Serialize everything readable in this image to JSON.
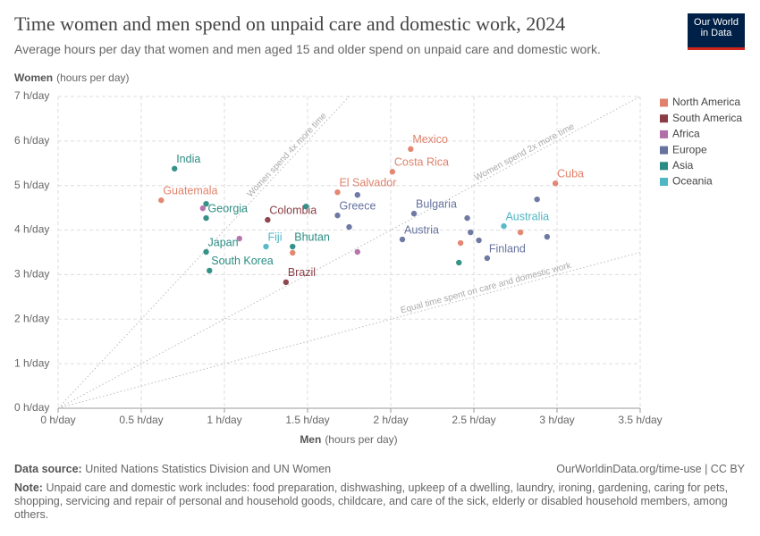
{
  "chart_data": {
    "type": "scatter",
    "title": "Time women and men spend on unpaid care and domestic work, 2024",
    "subtitle": "Average hours per day that women and men aged 15 and older spend on unpaid care and domestic work.",
    "logo": "Our World in Data",
    "y_label": "Women",
    "y_label_unit": "(hours per day)",
    "x_label": "Men",
    "x_label_unit": "(hours per day)",
    "xlim": [
      0,
      3.5
    ],
    "ylim": [
      0,
      7
    ],
    "xticks": [
      {
        "value": 0,
        "label": "0 h/day"
      },
      {
        "value": 0.5,
        "label": "0.5 h/day"
      },
      {
        "value": 1,
        "label": "1 h/day"
      },
      {
        "value": 1.5,
        "label": "1.5 h/day"
      },
      {
        "value": 2,
        "label": "2 h/day"
      },
      {
        "value": 2.5,
        "label": "2.5 h/day"
      },
      {
        "value": 3,
        "label": "3 h/day"
      },
      {
        "value": 3.5,
        "label": "3.5 h/day"
      }
    ],
    "yticks": [
      {
        "value": 0,
        "label": "0 h/day"
      },
      {
        "value": 1,
        "label": "1 h/day"
      },
      {
        "value": 2,
        "label": "2 h/day"
      },
      {
        "value": 3,
        "label": "3 h/day"
      },
      {
        "value": 4,
        "label": "4 h/day"
      },
      {
        "value": 5,
        "label": "5 h/day"
      },
      {
        "value": 6,
        "label": "6 h/day"
      },
      {
        "value": 7,
        "label": "7 h/day"
      }
    ],
    "grid": true,
    "legend": "right",
    "reference_lines": [
      {
        "slope": 4,
        "label": "Women spend 4x more time"
      },
      {
        "slope": 2,
        "label": "Women spend 2x more time"
      },
      {
        "slope": 1,
        "label": "Equal time spent on care and domestic work"
      }
    ],
    "series": [
      {
        "name": "North America",
        "color": "#e0826b",
        "x": [
          2.12,
          2.01,
          1.68,
          2.99,
          0.62,
          1.41,
          2.42,
          2.78
        ],
        "values": [
          5.82,
          5.31,
          4.85,
          5.05,
          4.67,
          3.49,
          3.71,
          3.95
        ],
        "labels": [
          "Mexico",
          "Costa Rica",
          "El Salvador",
          "Cuba",
          "Guatemala",
          null,
          null,
          null
        ]
      },
      {
        "name": "South America",
        "color": "#8a3c44",
        "x": [
          1.26,
          1.37
        ],
        "values": [
          4.23,
          2.83
        ],
        "labels": [
          "Colombia",
          "Brazil"
        ]
      },
      {
        "name": "Africa",
        "color": "#b16fa8",
        "x": [
          0.87,
          1.09,
          1.8
        ],
        "values": [
          4.49,
          3.81,
          3.51
        ],
        "labels": [
          null,
          null,
          null
        ]
      },
      {
        "name": "Europe",
        "color": "#66739e",
        "x": [
          1.68,
          2.14,
          2.07,
          2.58,
          1.8,
          1.75,
          2.46,
          2.48,
          2.53,
          2.88,
          2.94
        ],
        "values": [
          4.33,
          4.37,
          3.79,
          3.37,
          4.79,
          4.07,
          4.27,
          3.95,
          3.77,
          4.69,
          3.85
        ],
        "labels": [
          "Greece",
          "Bulgaria",
          "Austria",
          "Finland",
          null,
          null,
          null,
          null,
          null,
          null,
          null
        ]
      },
      {
        "name": "Asia",
        "color": "#2a8c82",
        "x": [
          0.7,
          0.89,
          0.89,
          0.91,
          1.41,
          0.89,
          1.49,
          2.41
        ],
        "values": [
          5.38,
          4.27,
          3.51,
          3.09,
          3.63,
          4.59,
          4.53,
          3.27
        ],
        "labels": [
          "India",
          "Georgia",
          "Japan",
          "South Korea",
          "Bhutan",
          null,
          null,
          null
        ]
      },
      {
        "name": "Oceania",
        "color": "#4fb6c4",
        "x": [
          2.68,
          1.25
        ],
        "values": [
          4.09,
          3.63
        ],
        "labels": [
          "Australia",
          "Fiji"
        ]
      }
    ],
    "source_label": "Data source:",
    "source": "United Nations Statistics Division and UN Women",
    "url": "OurWorldinData.org/time-use | CC BY",
    "note_label": "Note:",
    "note": "Unpaid care and domestic work includes: food preparation, dishwashing, upkeep of a dwelling, laundry, ironing, gardening, caring for pets, shopping, servicing and repair of personal and household goods, childcare, and care of the sick, elderly or disabled household members, among others."
  }
}
